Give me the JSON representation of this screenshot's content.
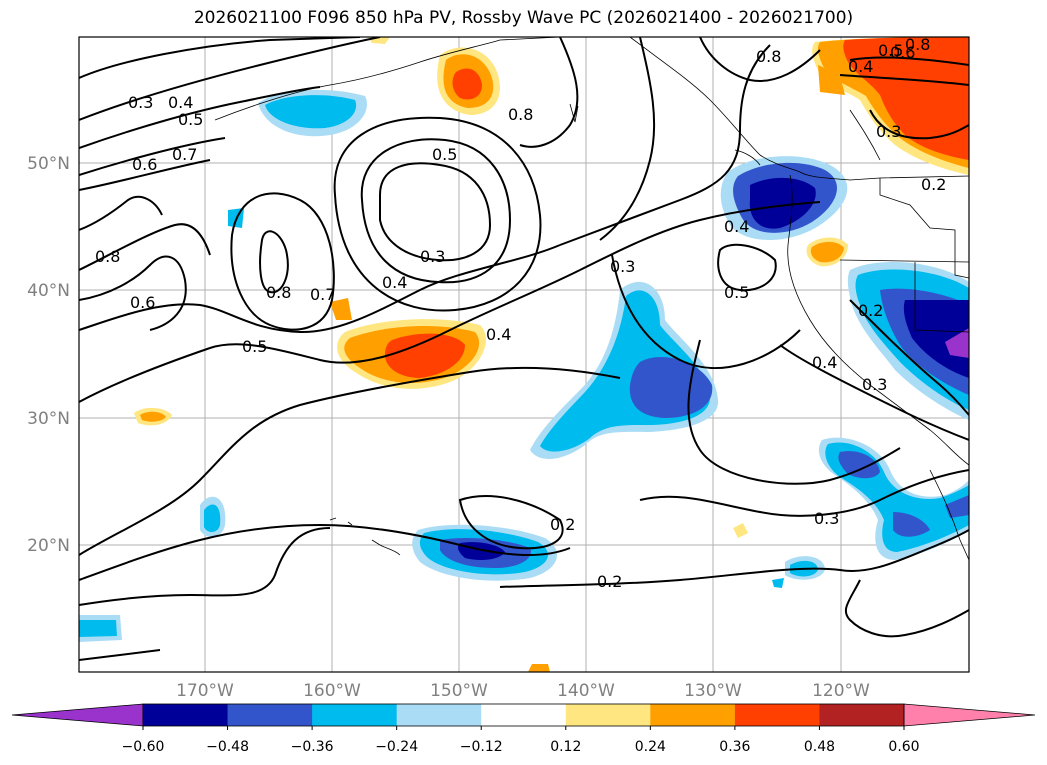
{
  "title": "2026021100 F096 850 hPa PV, Rossby Wave PC (2026021400 - 2026021700)",
  "map": {
    "lat_labels": [
      "50°N",
      "40°N",
      "30°N",
      "20°N"
    ],
    "lon_labels": [
      "170°W",
      "160°W",
      "150°W",
      "140°W",
      "130°W",
      "120°W"
    ],
    "contour_labels": [
      "0.3",
      "0.4",
      "0.5",
      "0.6",
      "0.7",
      "0.8",
      "0.6",
      "0.8",
      "0.5",
      "0.3",
      "0.4",
      "0.8",
      "0.7",
      "0.5",
      "0.4",
      "0.3",
      "0.5",
      "0.4",
      "0.8",
      "0.3",
      "0.2",
      "0.2",
      "0.3",
      "0.4",
      "0.2",
      "0.3",
      "0.2",
      "0.4",
      "0.5",
      "0.6",
      "0.8"
    ]
  },
  "colorbar": {
    "ticks": [
      "−0.60",
      "−0.48",
      "−0.36",
      "−0.24",
      "−0.12",
      "0.12",
      "0.24",
      "0.36",
      "0.48",
      "0.60"
    ],
    "colors": [
      "#9933cc",
      "#000099",
      "#3355cc",
      "#00bbee",
      "#aaddf5",
      "#ffffff",
      "#ffe680",
      "#ffa000",
      "#ff4000",
      "#b22222",
      "#ff80aa"
    ]
  }
}
